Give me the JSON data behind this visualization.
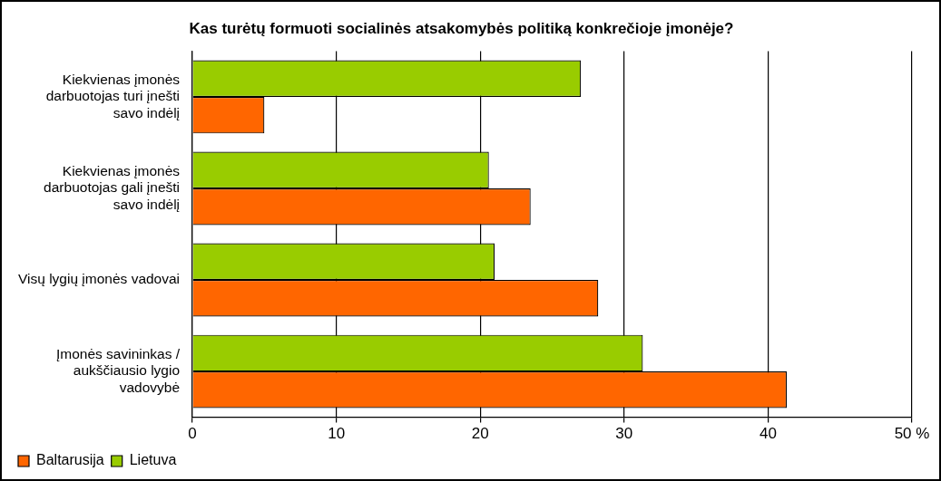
{
  "chart_data": {
    "type": "bar",
    "orientation": "horizontal",
    "title": "Kas turėtų formuoti socialinės atsakomybės politiką konkrečioje įmonėje?",
    "categories": [
      "Kiekvienas įmonės darbuotojas turi įnešti savo indėlį",
      "Kiekvienas įmonės darbuotojas gali įnešti savo indėlį",
      "Visų lygių įmonės vadovai",
      "Įmonės savininkas / aukščiausio lygio vadovybė"
    ],
    "series": [
      {
        "name": "Baltarusija",
        "color": "#ff6600",
        "values": [
          5.0,
          23.5,
          28.2,
          41.3
        ]
      },
      {
        "name": "Lietuva",
        "color": "#99cc00",
        "values": [
          27.0,
          20.6,
          21.0,
          31.3
        ]
      }
    ],
    "xlim": [
      0,
      50
    ],
    "xticks": [
      0,
      10,
      20,
      30,
      40,
      {
        "value": 50,
        "label": "50 %"
      }
    ],
    "grid": "x",
    "legend": "bottom left"
  }
}
